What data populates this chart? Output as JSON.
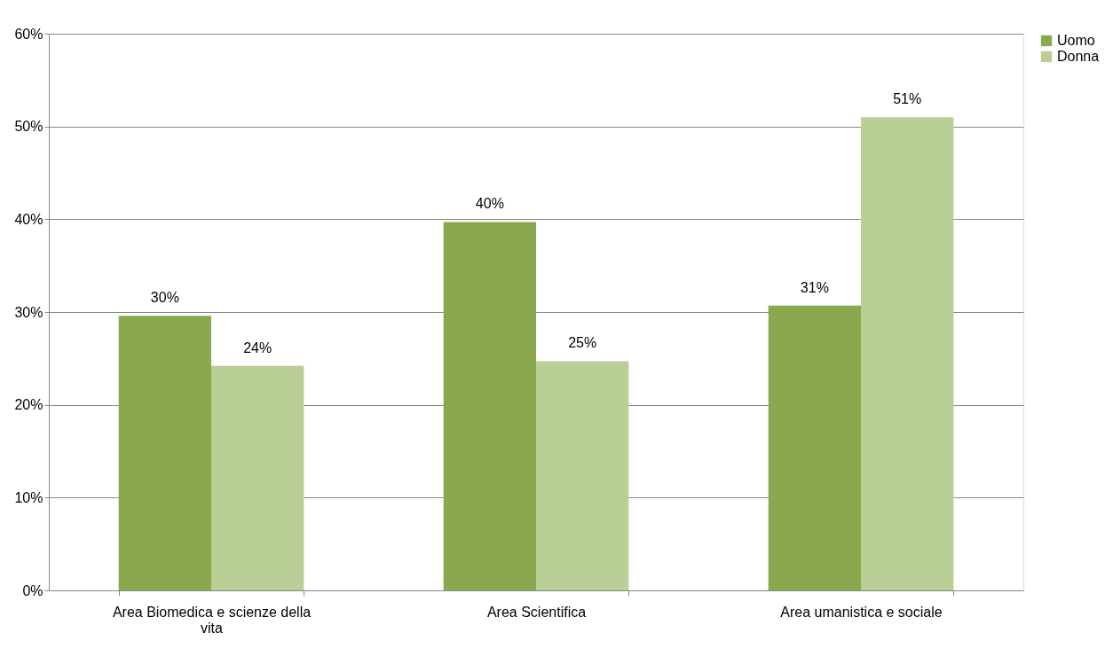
{
  "chart_data": {
    "type": "bar",
    "categories": [
      "Area Biomedica e scienze della vita",
      "Area Scientifica",
      "Area umanistica e sociale"
    ],
    "series": [
      {
        "name": "Uomo",
        "color": "#8aa84e",
        "values": [
          29.6,
          39.7,
          30.7
        ],
        "value_labels": [
          "30%",
          "40%",
          "31%"
        ]
      },
      {
        "name": "Donna",
        "color": "#b9cf96",
        "values": [
          24.2,
          24.7,
          51.0
        ],
        "value_labels": [
          "24%",
          "25%",
          "51%"
        ]
      }
    ],
    "ylim": [
      0,
      60
    ],
    "yticks": [
      {
        "value": 0,
        "label": "0%"
      },
      {
        "value": 10,
        "label": "10%"
      },
      {
        "value": 20,
        "label": "20%"
      },
      {
        "value": 30,
        "label": "30%"
      },
      {
        "value": 40,
        "label": "40%"
      },
      {
        "value": 50,
        "label": "50%"
      },
      {
        "value": 60,
        "label": "60%"
      }
    ],
    "grid": "y",
    "legend": "right"
  }
}
